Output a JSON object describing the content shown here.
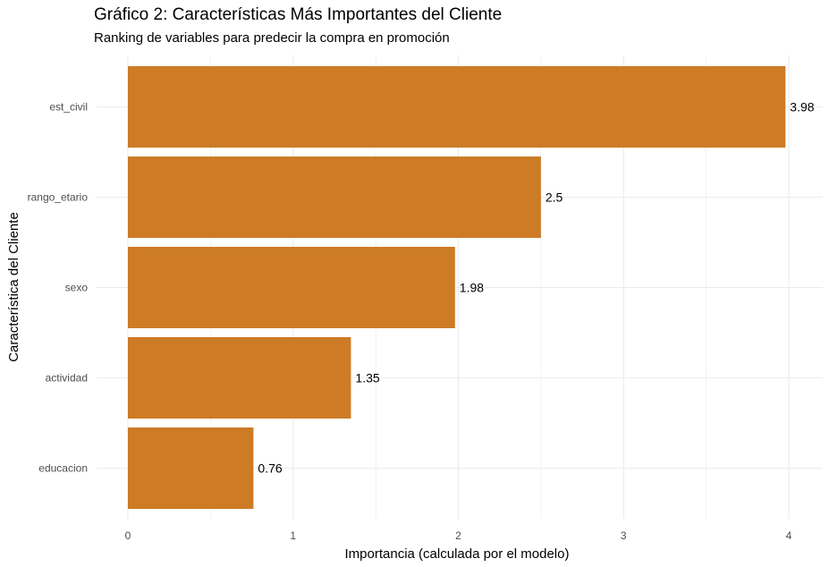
{
  "chart_data": {
    "type": "bar",
    "orientation": "horizontal",
    "title": "Gráfico 2: Características Más Importantes del Cliente",
    "subtitle": "Ranking de variables para predecir la compra en promoción",
    "xlabel": "Importancia (calculada por el modelo)",
    "ylabel": "Característica del Cliente",
    "categories": [
      "est_civil",
      "rango_etario",
      "sexo",
      "actividad",
      "educacion"
    ],
    "values": [
      3.98,
      2.5,
      1.98,
      1.35,
      0.76
    ],
    "data_labels": [
      "3.98",
      "2.5",
      "1.98",
      "1.35",
      "0.76"
    ],
    "xlim": [
      0,
      4.2
    ],
    "x_ticks": [
      0,
      1,
      2,
      3,
      4
    ],
    "x_tick_labels": [
      "0",
      "1",
      "2",
      "3",
      "4"
    ],
    "bar_color": "#CD7B25",
    "grid_color": "#EBEBEB",
    "grid": true,
    "legend": "none"
  }
}
